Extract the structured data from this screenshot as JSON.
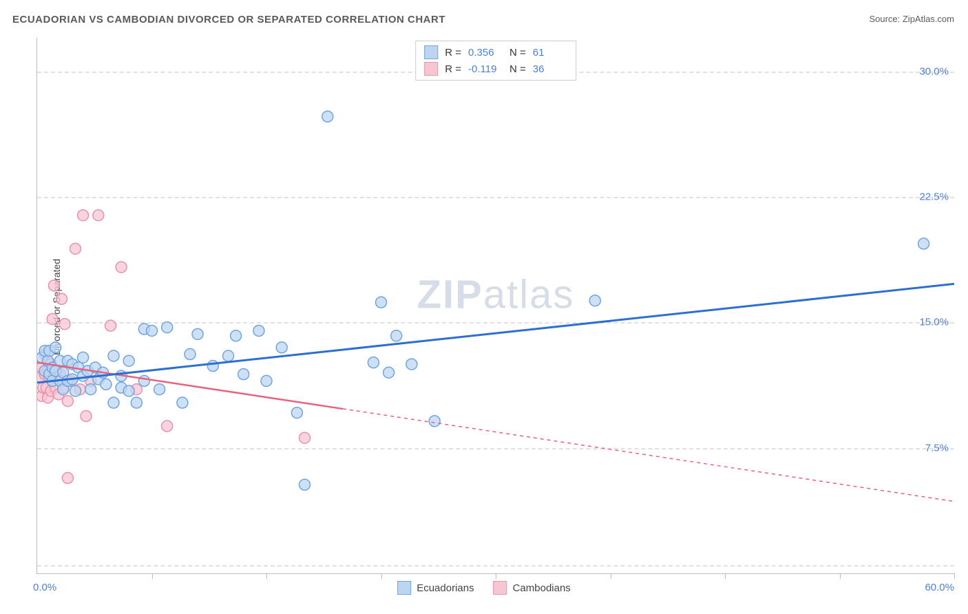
{
  "title": "ECUADORIAN VS CAMBODIAN DIVORCED OR SEPARATED CORRELATION CHART",
  "source_label": "Source: ",
  "source_name": "ZipAtlas.com",
  "ylabel": "Divorced or Separated",
  "watermark_bold": "ZIP",
  "watermark_light": "atlas",
  "chart": {
    "type": "scatter",
    "xlim": [
      0,
      60
    ],
    "ylim": [
      0,
      32
    ],
    "xtick_positions": [
      0,
      7.5,
      15,
      22.5,
      30,
      37.5,
      45,
      52.5,
      60
    ],
    "xlim_labels": {
      "min": "0.0%",
      "max": "60.0%"
    },
    "ytick_labels": [
      {
        "v": 7.5,
        "label": "7.5%"
      },
      {
        "v": 15.0,
        "label": "15.0%"
      },
      {
        "v": 22.5,
        "label": "22.5%"
      },
      {
        "v": 30.0,
        "label": "30.0%"
      }
    ],
    "grid_y": [
      0.5,
      7.5,
      15.0,
      22.5,
      30.0
    ],
    "grid_color": "#e0e0e0",
    "background_color": "#ffffff",
    "series": [
      {
        "name": "Ecuadorians",
        "marker_fill": "#bcd6f2",
        "marker_stroke": "#6ea4e0",
        "marker_radius": 8,
        "marker_opacity": 0.75,
        "line_color": "#2d6fd0",
        "line_width": 3,
        "line_solid_until_x": 60,
        "R": "0.356",
        "N": "61",
        "trend": {
          "x1": 0,
          "y1": 11.4,
          "x2": 60,
          "y2": 17.3
        },
        "points": [
          [
            0.3,
            12.9
          ],
          [
            0.5,
            13.3
          ],
          [
            0.5,
            12.1
          ],
          [
            0.7,
            12.7
          ],
          [
            0.8,
            11.9
          ],
          [
            0.8,
            13.3
          ],
          [
            1.0,
            12.3
          ],
          [
            1.0,
            11.5
          ],
          [
            1.2,
            12.1
          ],
          [
            1.2,
            13.5
          ],
          [
            1.5,
            11.5
          ],
          [
            1.5,
            12.7
          ],
          [
            1.7,
            12.0
          ],
          [
            1.7,
            11.0
          ],
          [
            2.0,
            12.7
          ],
          [
            2.0,
            11.5
          ],
          [
            2.3,
            11.6
          ],
          [
            2.3,
            12.5
          ],
          [
            2.5,
            10.9
          ],
          [
            2.7,
            12.3
          ],
          [
            3.0,
            12.9
          ],
          [
            3.0,
            11.8
          ],
          [
            3.3,
            12.1
          ],
          [
            3.5,
            11.0
          ],
          [
            3.8,
            12.3
          ],
          [
            4.0,
            11.6
          ],
          [
            4.3,
            12.0
          ],
          [
            4.5,
            11.3
          ],
          [
            5.0,
            10.2
          ],
          [
            5.0,
            13.0
          ],
          [
            5.5,
            11.1
          ],
          [
            5.5,
            11.8
          ],
          [
            6.0,
            10.9
          ],
          [
            6.0,
            12.7
          ],
          [
            6.5,
            10.2
          ],
          [
            7.0,
            11.5
          ],
          [
            7.0,
            14.6
          ],
          [
            7.5,
            14.5
          ],
          [
            8.0,
            11.0
          ],
          [
            8.5,
            14.7
          ],
          [
            9.5,
            10.2
          ],
          [
            10.0,
            13.1
          ],
          [
            10.5,
            14.3
          ],
          [
            11.5,
            12.4
          ],
          [
            12.5,
            13.0
          ],
          [
            13.0,
            14.2
          ],
          [
            13.5,
            11.9
          ],
          [
            14.5,
            14.5
          ],
          [
            15.0,
            11.5
          ],
          [
            16.0,
            13.5
          ],
          [
            17.0,
            9.6
          ],
          [
            17.5,
            5.3
          ],
          [
            19.0,
            27.3
          ],
          [
            22.0,
            12.6
          ],
          [
            22.5,
            16.2
          ],
          [
            23.0,
            12.0
          ],
          [
            23.5,
            14.2
          ],
          [
            24.5,
            12.5
          ],
          [
            26.0,
            9.1
          ],
          [
            36.5,
            16.3
          ],
          [
            58.0,
            19.7
          ]
        ]
      },
      {
        "name": "Cambodians",
        "marker_fill": "#f6c6d3",
        "marker_stroke": "#ea91ac",
        "marker_radius": 8,
        "marker_opacity": 0.75,
        "line_color": "#e9607f",
        "line_width": 2.5,
        "line_solid_until_x": 20,
        "R": "-0.119",
        "N": "36",
        "trend": {
          "x1": 0,
          "y1": 12.6,
          "x2": 60,
          "y2": 4.3
        },
        "points": [
          [
            0.2,
            11.7
          ],
          [
            0.3,
            12.3
          ],
          [
            0.3,
            10.6
          ],
          [
            0.4,
            11.1
          ],
          [
            0.5,
            11.9
          ],
          [
            0.5,
            13.1
          ],
          [
            0.6,
            11.1
          ],
          [
            0.7,
            12.1
          ],
          [
            0.7,
            10.5
          ],
          [
            0.8,
            11.7
          ],
          [
            0.9,
            12.5
          ],
          [
            0.9,
            10.9
          ],
          [
            1.0,
            11.5
          ],
          [
            1.0,
            15.2
          ],
          [
            1.1,
            17.2
          ],
          [
            1.2,
            11.1
          ],
          [
            1.3,
            12.1
          ],
          [
            1.4,
            10.7
          ],
          [
            1.5,
            11.9
          ],
          [
            1.6,
            16.4
          ],
          [
            1.7,
            11.1
          ],
          [
            1.8,
            14.9
          ],
          [
            2.0,
            10.3
          ],
          [
            2.0,
            5.7
          ],
          [
            2.2,
            11.5
          ],
          [
            2.5,
            19.4
          ],
          [
            2.8,
            11.0
          ],
          [
            3.0,
            21.4
          ],
          [
            3.2,
            9.4
          ],
          [
            3.5,
            11.5
          ],
          [
            4.0,
            21.4
          ],
          [
            4.8,
            14.8
          ],
          [
            5.5,
            18.3
          ],
          [
            6.5,
            11.0
          ],
          [
            8.5,
            8.8
          ],
          [
            17.5,
            8.1
          ]
        ]
      }
    ]
  },
  "legend_top": {
    "r_label": "R =",
    "n_label": "N ="
  },
  "legend_bottom": [
    {
      "label": "Ecuadorians",
      "fill": "#bcd6f2",
      "stroke": "#6ea4e0"
    },
    {
      "label": "Cambodians",
      "fill": "#f6c6d3",
      "stroke": "#ea91ac"
    }
  ]
}
